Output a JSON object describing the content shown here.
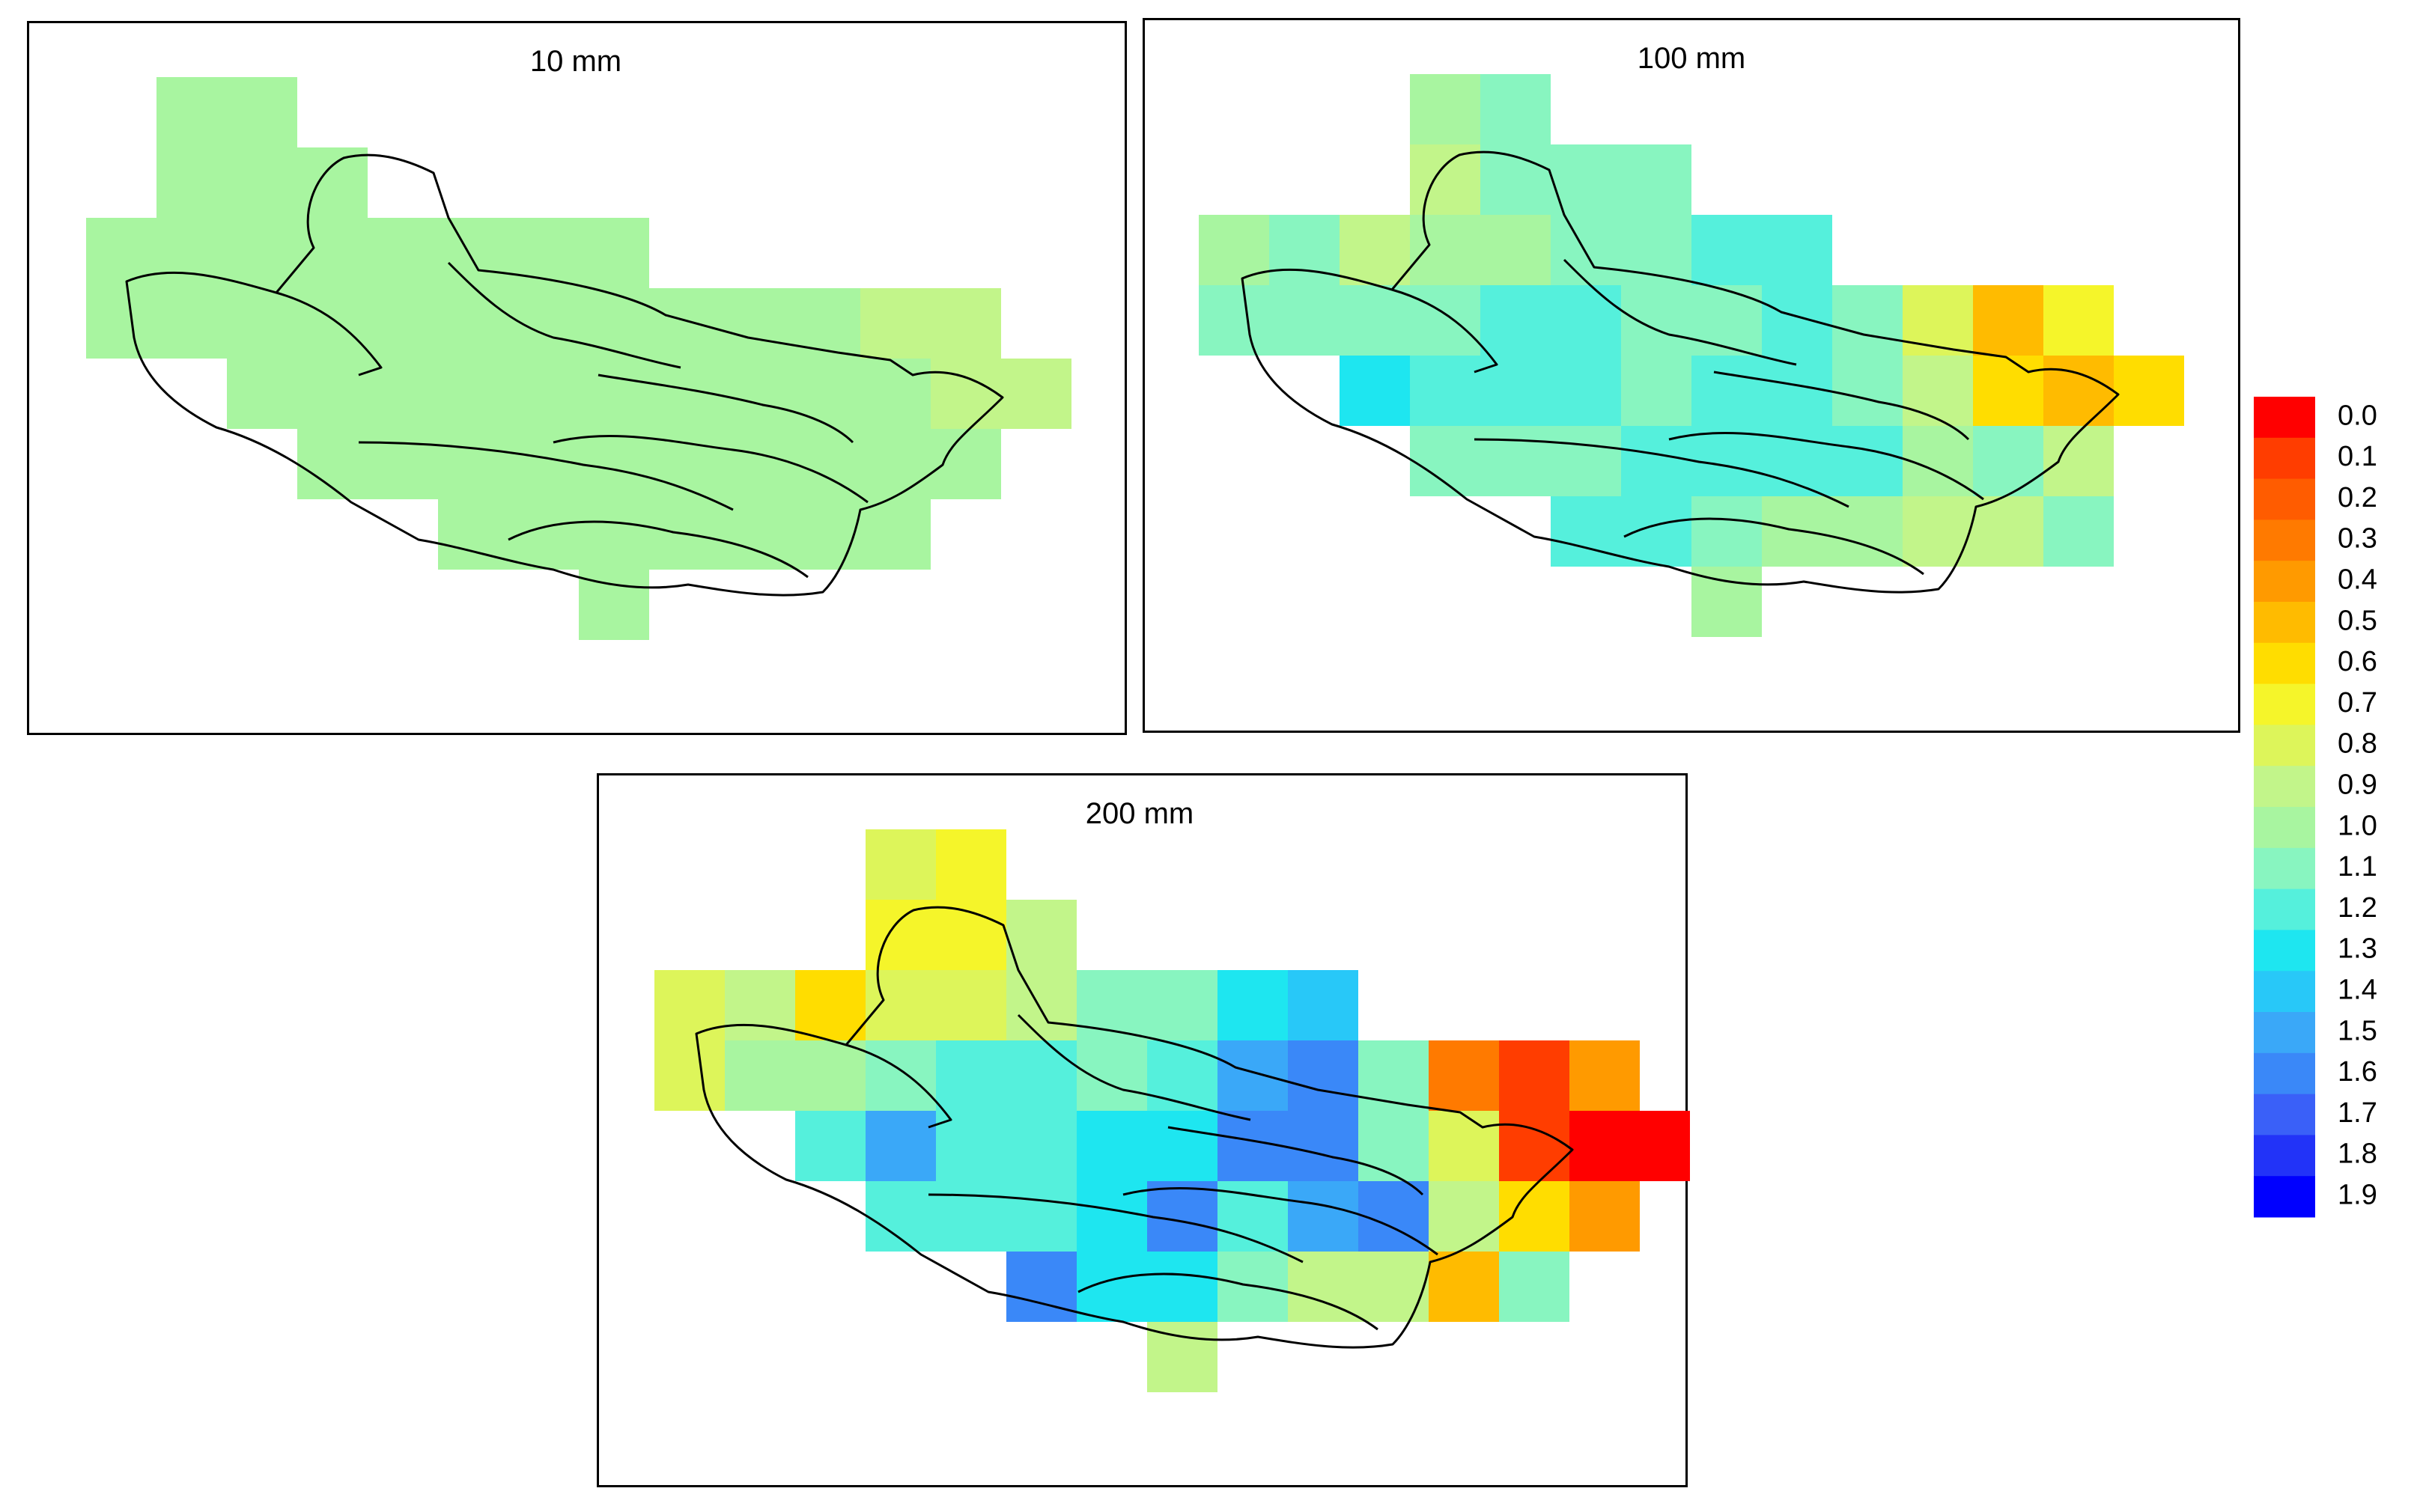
{
  "figure": {
    "legend_values": [
      "0.0",
      "0.1",
      "0.2",
      "0.3",
      "0.4",
      "0.5",
      "0.6",
      "0.7",
      "0.8",
      "0.9",
      "1.0",
      "1.1",
      "1.2",
      "1.3",
      "1.4",
      "1.5",
      "1.6",
      "1.7",
      "1.8",
      "1.9"
    ],
    "legend_colors": [
      "#ff0000",
      "#ff3d00",
      "#ff5c00",
      "#ff7a00",
      "#ff9a00",
      "#ffbb00",
      "#ffdd00",
      "#f5f52a",
      "#ddf55a",
      "#c2f58a",
      "#a8f5a0",
      "#88f5c0",
      "#55f0dc",
      "#1ee6f0",
      "#28c8f8",
      "#3aa8f8",
      "#3a88f8",
      "#3a60f8",
      "#2233f8",
      "#0000ff"
    ],
    "colormap": "red (0.0) to blue (1.9)"
  },
  "chart_data": [
    {
      "type": "heatmap",
      "title": "10 mm",
      "grid_origin": [
        0,
        0
      ],
      "values": [
        [
          null,
          1.0,
          1.0,
          null,
          null,
          null,
          null,
          null,
          null,
          null,
          null,
          null,
          null,
          null
        ],
        [
          null,
          1.0,
          1.0,
          1.0,
          null,
          null,
          null,
          null,
          null,
          null,
          null,
          null,
          null,
          null
        ],
        [
          1.0,
          1.0,
          1.0,
          1.0,
          1.0,
          1.0,
          1.0,
          1.0,
          null,
          null,
          null,
          null,
          null,
          null
        ],
        [
          1.0,
          1.0,
          1.0,
          1.0,
          1.0,
          1.0,
          1.0,
          1.0,
          1.0,
          1.0,
          1.0,
          0.9,
          0.9,
          null
        ],
        [
          null,
          null,
          1.0,
          1.0,
          1.0,
          1.0,
          1.0,
          1.0,
          1.0,
          1.0,
          1.0,
          1.0,
          0.9,
          0.9
        ],
        [
          null,
          null,
          null,
          1.0,
          1.0,
          1.0,
          1.0,
          1.0,
          1.0,
          1.0,
          1.0,
          1.0,
          1.0,
          null
        ],
        [
          null,
          null,
          null,
          null,
          null,
          1.0,
          1.0,
          1.0,
          1.0,
          1.0,
          1.0,
          1.0,
          null,
          null
        ],
        [
          null,
          null,
          null,
          null,
          null,
          null,
          null,
          1.0,
          null,
          null,
          null,
          null,
          null,
          null
        ]
      ]
    },
    {
      "type": "heatmap",
      "title": "100 mm",
      "values": [
        [
          null,
          null,
          null,
          1.0,
          1.1,
          null,
          null,
          null,
          null,
          null,
          null,
          null,
          null,
          null,
          null
        ],
        [
          null,
          null,
          null,
          0.9,
          1.1,
          1.1,
          1.1,
          null,
          null,
          null,
          null,
          null,
          null,
          null,
          null
        ],
        [
          1.0,
          1.1,
          0.9,
          1.0,
          1.0,
          1.1,
          1.1,
          1.2,
          1.2,
          null,
          null,
          null,
          null,
          null,
          null
        ],
        [
          1.1,
          1.1,
          1.1,
          1.1,
          1.2,
          1.2,
          1.1,
          1.1,
          1.2,
          1.1,
          0.8,
          0.5,
          0.7,
          null,
          null
        ],
        [
          null,
          null,
          1.3,
          1.2,
          1.2,
          1.2,
          1.1,
          1.2,
          1.2,
          1.1,
          0.9,
          0.6,
          0.5,
          0.6,
          null
        ],
        [
          null,
          null,
          null,
          1.1,
          1.1,
          1.1,
          1.2,
          1.2,
          1.2,
          1.2,
          1.0,
          1.1,
          0.9,
          null,
          null
        ],
        [
          null,
          null,
          null,
          null,
          null,
          1.2,
          1.2,
          1.1,
          1.0,
          1.0,
          0.9,
          0.9,
          1.1,
          null,
          null
        ],
        [
          null,
          null,
          null,
          null,
          null,
          null,
          null,
          1.0,
          null,
          null,
          null,
          null,
          null,
          null,
          null
        ]
      ]
    },
    {
      "type": "heatmap",
      "title": "200 mm",
      "values": [
        [
          null,
          null,
          null,
          0.8,
          0.7,
          null,
          null,
          null,
          null,
          null,
          null,
          null,
          null,
          null,
          null
        ],
        [
          null,
          null,
          null,
          0.7,
          0.7,
          0.9,
          null,
          null,
          null,
          null,
          null,
          null,
          null,
          null,
          null
        ],
        [
          0.8,
          0.9,
          0.6,
          0.8,
          0.8,
          0.9,
          1.1,
          1.1,
          1.3,
          1.4,
          null,
          null,
          null,
          null,
          null
        ],
        [
          0.8,
          1.0,
          1.0,
          1.1,
          1.2,
          1.2,
          1.1,
          1.2,
          1.5,
          1.6,
          1.1,
          0.3,
          0.1,
          0.4,
          null
        ],
        [
          null,
          null,
          1.2,
          1.5,
          1.2,
          1.2,
          1.3,
          1.3,
          1.6,
          1.6,
          1.1,
          0.8,
          0.1,
          0.0,
          0.0
        ],
        [
          null,
          null,
          null,
          1.2,
          1.2,
          1.2,
          1.3,
          1.6,
          1.2,
          1.5,
          1.6,
          0.9,
          0.6,
          0.4,
          null
        ],
        [
          null,
          null,
          null,
          null,
          null,
          1.6,
          1.3,
          1.3,
          1.1,
          0.9,
          0.9,
          0.5,
          1.1,
          null,
          null
        ],
        [
          null,
          null,
          null,
          null,
          null,
          null,
          null,
          0.9,
          null,
          null,
          null,
          null,
          null,
          null,
          null
        ]
      ]
    }
  ]
}
